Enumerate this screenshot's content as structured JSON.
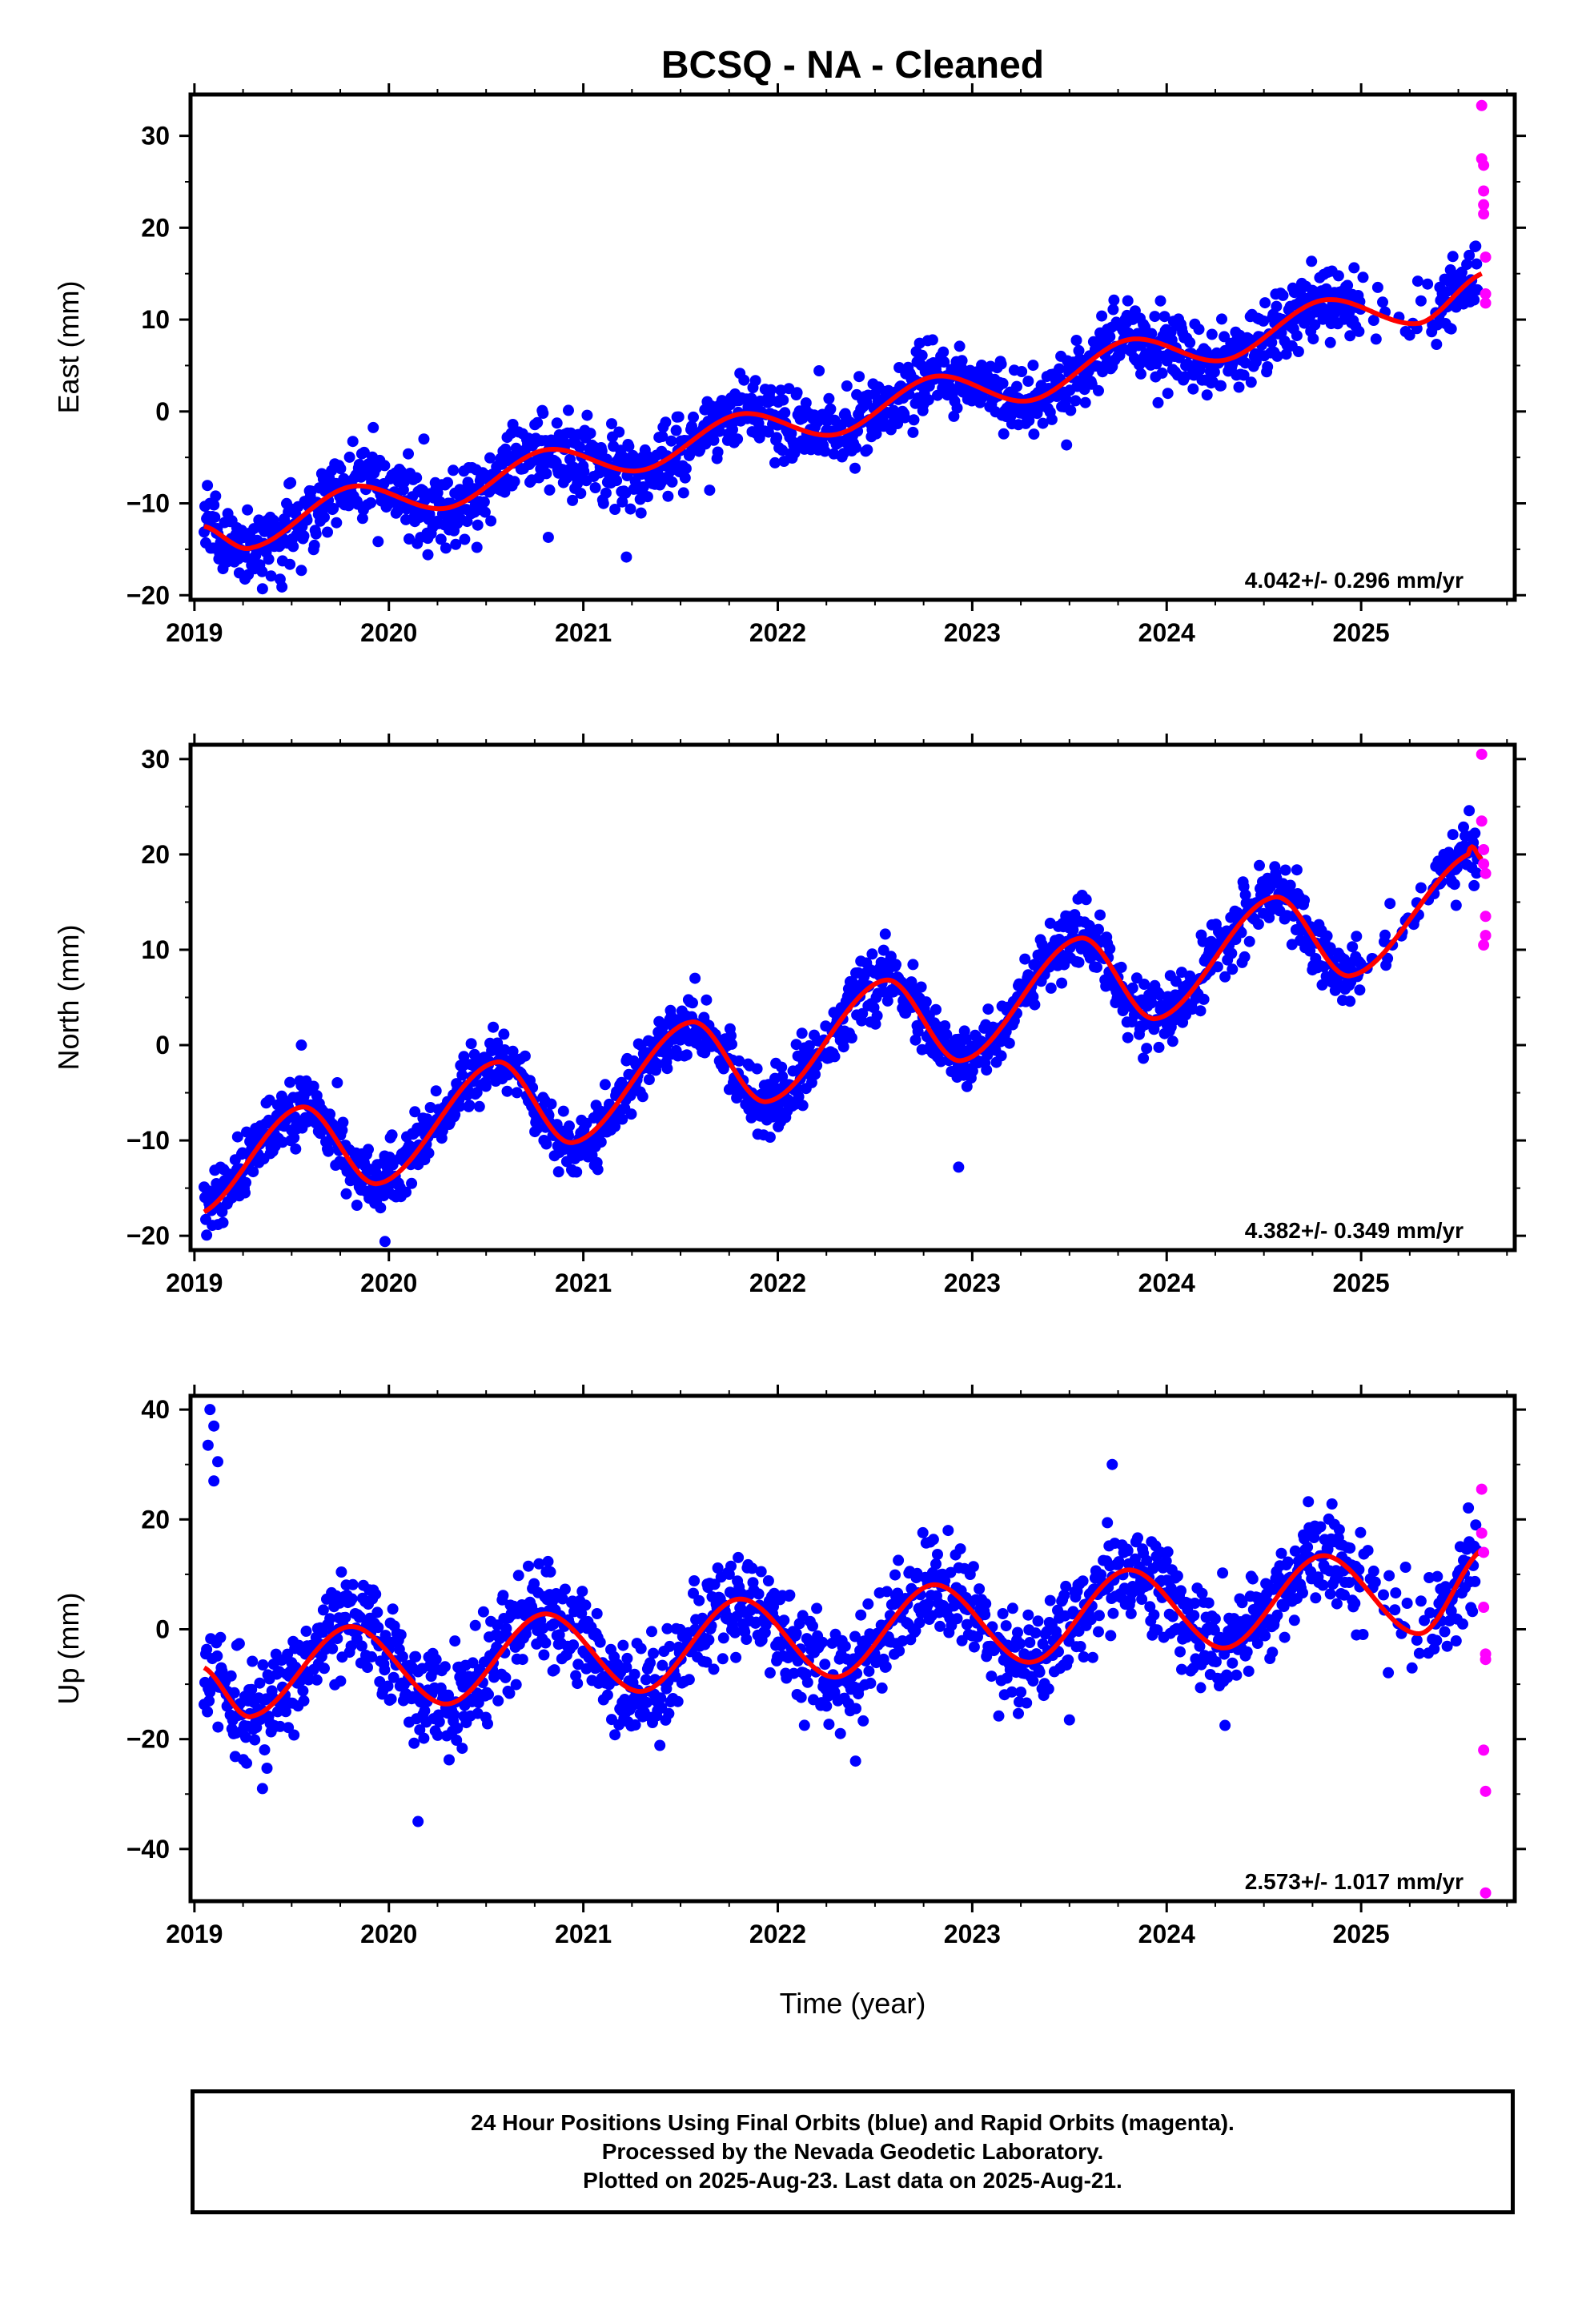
{
  "title": "BCSQ  - NA - Cleaned",
  "xlabel": "Time (year)",
  "colors": {
    "final": "#0000ff",
    "rapid": "#ff00ff",
    "model": "#ff0000",
    "frame": "#000000"
  },
  "chart_data": [
    {
      "type": "scatter",
      "ylabel": "East (mm)",
      "rate": "4.042+/- 0.296 mm/yr",
      "xlim": [
        2018.98,
        2025.79
      ],
      "ylim": [
        -20.5,
        34.5
      ],
      "x_ticks": [
        2019,
        2020,
        2021,
        2022,
        2023,
        2024,
        2025
      ],
      "y_ticks": [
        -20,
        -10,
        0,
        10,
        20,
        30
      ],
      "grid": false,
      "model": {
        "x": [
          2019.05,
          2019.3,
          2019.8,
          2020.3,
          2020.8,
          2021.3,
          2021.8,
          2022.3,
          2022.8,
          2023.3,
          2023.8,
          2024.3,
          2024.8,
          2025.3,
          2025.62
        ],
        "y": [
          -12.5,
          -14.8,
          -8.2,
          -10.5,
          -4.2,
          -6.4,
          -0.3,
          -2.5,
          3.8,
          1.2,
          7.8,
          5.6,
          12.1,
          9.6,
          15.0
        ]
      },
      "series": [
        {
          "name": "Final Orbits",
          "color_key": "final",
          "x_range": [
            2019.05,
            2025.6
          ],
          "scatter": 2.0,
          "outliers": [
            [
              2019.35,
              -19.3
            ],
            [
              2019.45,
              -19.1
            ],
            [
              2019.55,
              -17.3
            ],
            [
              2020.2,
              -13.8
            ],
            [
              2020.18,
              -3.0
            ],
            [
              2020.82,
              -13.7
            ]
          ]
        },
        {
          "name": "Rapid Orbits",
          "color_key": "rapid",
          "x": [
            2025.62,
            2025.62,
            2025.63,
            2025.63,
            2025.63,
            2025.63,
            2025.64,
            2025.64,
            2025.64
          ],
          "y": [
            33.3,
            27.5,
            26.8,
            24.0,
            22.5,
            21.5,
            16.8,
            12.8,
            11.8
          ]
        }
      ]
    },
    {
      "type": "scatter",
      "ylabel": "North (mm)",
      "rate": "4.382+/- 0.349 mm/yr",
      "xlim": [
        2018.98,
        2025.79
      ],
      "ylim": [
        -21.5,
        31.5
      ],
      "x_ticks": [
        2019,
        2020,
        2021,
        2022,
        2023,
        2024,
        2025
      ],
      "y_ticks": [
        -20,
        -10,
        0,
        10,
        20,
        30
      ],
      "grid": false,
      "model": {
        "x": [
          2019.05,
          2019.55,
          2019.95,
          2020.55,
          2020.95,
          2021.55,
          2021.95,
          2022.55,
          2022.95,
          2023.55,
          2023.95,
          2024.55,
          2024.95,
          2025.55,
          2025.62
        ],
        "y": [
          -17.5,
          -6.5,
          -14.5,
          -1.8,
          -10.2,
          2.4,
          -5.9,
          6.8,
          -1.6,
          11.2,
          2.8,
          15.5,
          7.3,
          20.0,
          19.5
        ]
      },
      "series": [
        {
          "name": "Final Orbits",
          "color_key": "final",
          "x_range": [
            2019.05,
            2025.6
          ],
          "scatter": 1.6,
          "outliers": [
            [
              2019.55,
              0.0
            ],
            [
              2019.98,
              -20.6
            ],
            [
              2022.93,
              -12.8
            ]
          ]
        },
        {
          "name": "Rapid Orbits",
          "color_key": "rapid",
          "x": [
            2025.62,
            2025.62,
            2025.63,
            2025.63,
            2025.64,
            2025.64,
            2025.64,
            2025.63
          ],
          "y": [
            30.5,
            23.5,
            20.5,
            19.0,
            18.0,
            13.5,
            11.5,
            10.5
          ]
        }
      ]
    },
    {
      "type": "scatter",
      "ylabel": "Up (mm)",
      "rate": "2.573+/- 1.017 mm/yr",
      "xlim": [
        2018.98,
        2025.79
      ],
      "ylim": [
        -49.5,
        42.5
      ],
      "x_ticks": [
        2019,
        2020,
        2021,
        2022,
        2023,
        2024,
        2025
      ],
      "y_ticks": [
        -40,
        -20,
        0,
        20,
        40
      ],
      "grid": false,
      "model": {
        "x": [
          2019.05,
          2019.3,
          2019.8,
          2020.3,
          2020.8,
          2021.3,
          2021.8,
          2022.3,
          2022.8,
          2023.3,
          2023.8,
          2024.3,
          2024.8,
          2025.3,
          2025.62
        ],
        "y": [
          -7.0,
          -15.8,
          0.5,
          -13.6,
          2.8,
          -11.3,
          5.5,
          -8.7,
          8.1,
          -6.0,
          10.8,
          -3.4,
          13.4,
          -0.8,
          14.5
        ]
      },
      "series": [
        {
          "name": "Final Orbits",
          "color_key": "final",
          "x_range": [
            2019.05,
            2025.6
          ],
          "scatter": 4.5,
          "outliers": [
            [
              2019.08,
              40.0
            ],
            [
              2019.1,
              37.0
            ],
            [
              2019.07,
              33.5
            ],
            [
              2019.12,
              30.5
            ],
            [
              2019.1,
              27.0
            ],
            [
              2019.35,
              -29.0
            ],
            [
              2020.15,
              -35.0
            ],
            [
              2022.4,
              -24.0
            ],
            [
              2023.5,
              -16.5
            ],
            [
              2024.3,
              -17.5
            ],
            [
              2023.72,
              30.0
            ]
          ]
        },
        {
          "name": "Rapid Orbits",
          "color_key": "rapid",
          "x": [
            2025.62,
            2025.62,
            2025.63,
            2025.63,
            2025.64,
            2025.64,
            2025.63,
            2025.64,
            2025.64
          ],
          "y": [
            25.5,
            17.5,
            14.0,
            4.0,
            -4.5,
            -5.5,
            -22.0,
            -29.5,
            -48.0
          ]
        }
      ]
    }
  ],
  "footer": {
    "line1": "24 Hour Positions Using Final Orbits (blue) and Rapid Orbits (magenta).",
    "line2": "Processed by the Nevada Geodetic Laboratory.",
    "line3": "Plotted on 2025-Aug-23. Last data on 2025-Aug-21."
  }
}
